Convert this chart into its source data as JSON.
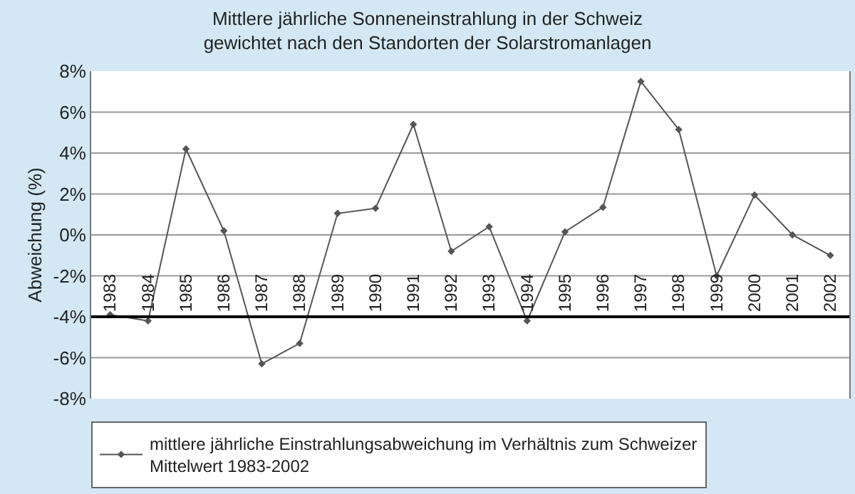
{
  "chart_data": {
    "type": "line",
    "title": "Mittlere jährliche Sonneneinstrahlung in der Schweiz",
    "subtitle": "gewichtet nach den Standorten der Solarstromanlagen",
    "ylabel": "Abweichung (%)",
    "categories": [
      "1983",
      "1984",
      "1985",
      "1986",
      "1987",
      "1988",
      "1989",
      "1990",
      "1991",
      "1992",
      "1993",
      "1994",
      "1995",
      "1996",
      "1997",
      "1998",
      "1999",
      "2000",
      "2001",
      "2002"
    ],
    "series": [
      {
        "name": "mittlere jährliche Einstrahlungsabweichung im Verhältnis zum Schweizer Mittelwert 1983-2002",
        "color": "#555555",
        "values": [
          -3.9,
          -4.2,
          4.2,
          0.2,
          -6.3,
          -5.3,
          1.05,
          1.3,
          5.4,
          -0.8,
          0.4,
          -4.2,
          0.15,
          1.35,
          7.5,
          5.15,
          -2.0,
          1.95,
          0,
          -1.0
        ]
      }
    ],
    "ylim": [
      -8,
      8
    ],
    "yticks": [
      {
        "value": -8,
        "label": "-8%"
      },
      {
        "value": -6,
        "label": "-6%"
      },
      {
        "value": -4,
        "label": "-4%"
      },
      {
        "value": -2,
        "label": "-2%"
      },
      {
        "value": 0,
        "label": "0%"
      },
      {
        "value": 2,
        "label": "2%"
      },
      {
        "value": 4,
        "label": "4%"
      },
      {
        "value": 6,
        "label": "6%"
      },
      {
        "value": 8,
        "label": "8%"
      }
    ],
    "grid": "y",
    "legend": "bottom",
    "marker": "diamond",
    "line_style": "solid"
  }
}
